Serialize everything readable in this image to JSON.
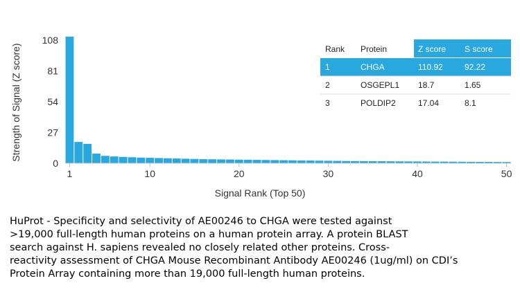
{
  "chart_data": {
    "type": "bar",
    "xlabel": "Signal Rank (Top 50)",
    "ylabel": "Strength of Signal (Z score)",
    "x_ticks": [
      1,
      10,
      20,
      30,
      40,
      50
    ],
    "y_ticks": [
      0,
      27,
      54,
      81,
      108
    ],
    "ylim": [
      0,
      110.92
    ],
    "bar_color": "#29a8e0",
    "categories": [
      1,
      2,
      3,
      4,
      5,
      6,
      7,
      8,
      9,
      10,
      11,
      12,
      13,
      14,
      15,
      16,
      17,
      18,
      19,
      20,
      21,
      22,
      23,
      24,
      25,
      26,
      27,
      28,
      29,
      30,
      31,
      32,
      33,
      34,
      35,
      36,
      37,
      38,
      39,
      40,
      41,
      42,
      43,
      44,
      45,
      46,
      47,
      48,
      49,
      50
    ],
    "values": [
      110.92,
      18.7,
      17.04,
      8.5,
      6.5,
      6.0,
      5.6,
      5.3,
      5.0,
      4.8,
      4.6,
      4.4,
      4.2,
      4.0,
      3.8,
      3.6,
      3.5,
      3.4,
      3.3,
      3.2,
      3.1,
      3.0,
      2.9,
      2.8,
      2.7,
      2.6,
      2.5,
      2.4,
      2.3,
      2.2,
      2.1,
      2.0,
      1.95,
      1.9,
      1.85,
      1.8,
      1.75,
      1.7,
      1.65,
      1.6,
      1.55,
      1.5,
      1.45,
      1.4,
      1.35,
      1.3,
      1.25,
      1.2,
      1.15,
      1.1
    ]
  },
  "table": {
    "headers": [
      "Rank",
      "Protein",
      "Z score",
      "S score"
    ],
    "highlight_color": "#29a8e0",
    "rows": [
      [
        "1",
        "CHGA",
        "110.92",
        "92.22"
      ],
      [
        "2",
        "OSGEPL1",
        "18.7",
        "1.65"
      ],
      [
        "3",
        "POLDIP2",
        "17.04",
        "8.1"
      ]
    ]
  },
  "caption": "HuProt  -  Specificity and selectivity of AE00246 to CHGA were tested against\n>19,000 full-length human proteins on a human protein array. A protein BLAST\nsearch against H. sapiens revealed no closely related other proteins. Cross-\nreactivity assessment of CHGA Mouse Recombinant Antibody AE00246 (1ug/ml) on CDI’s\nProtein Array containing more than 19,000 full-length human proteins."
}
